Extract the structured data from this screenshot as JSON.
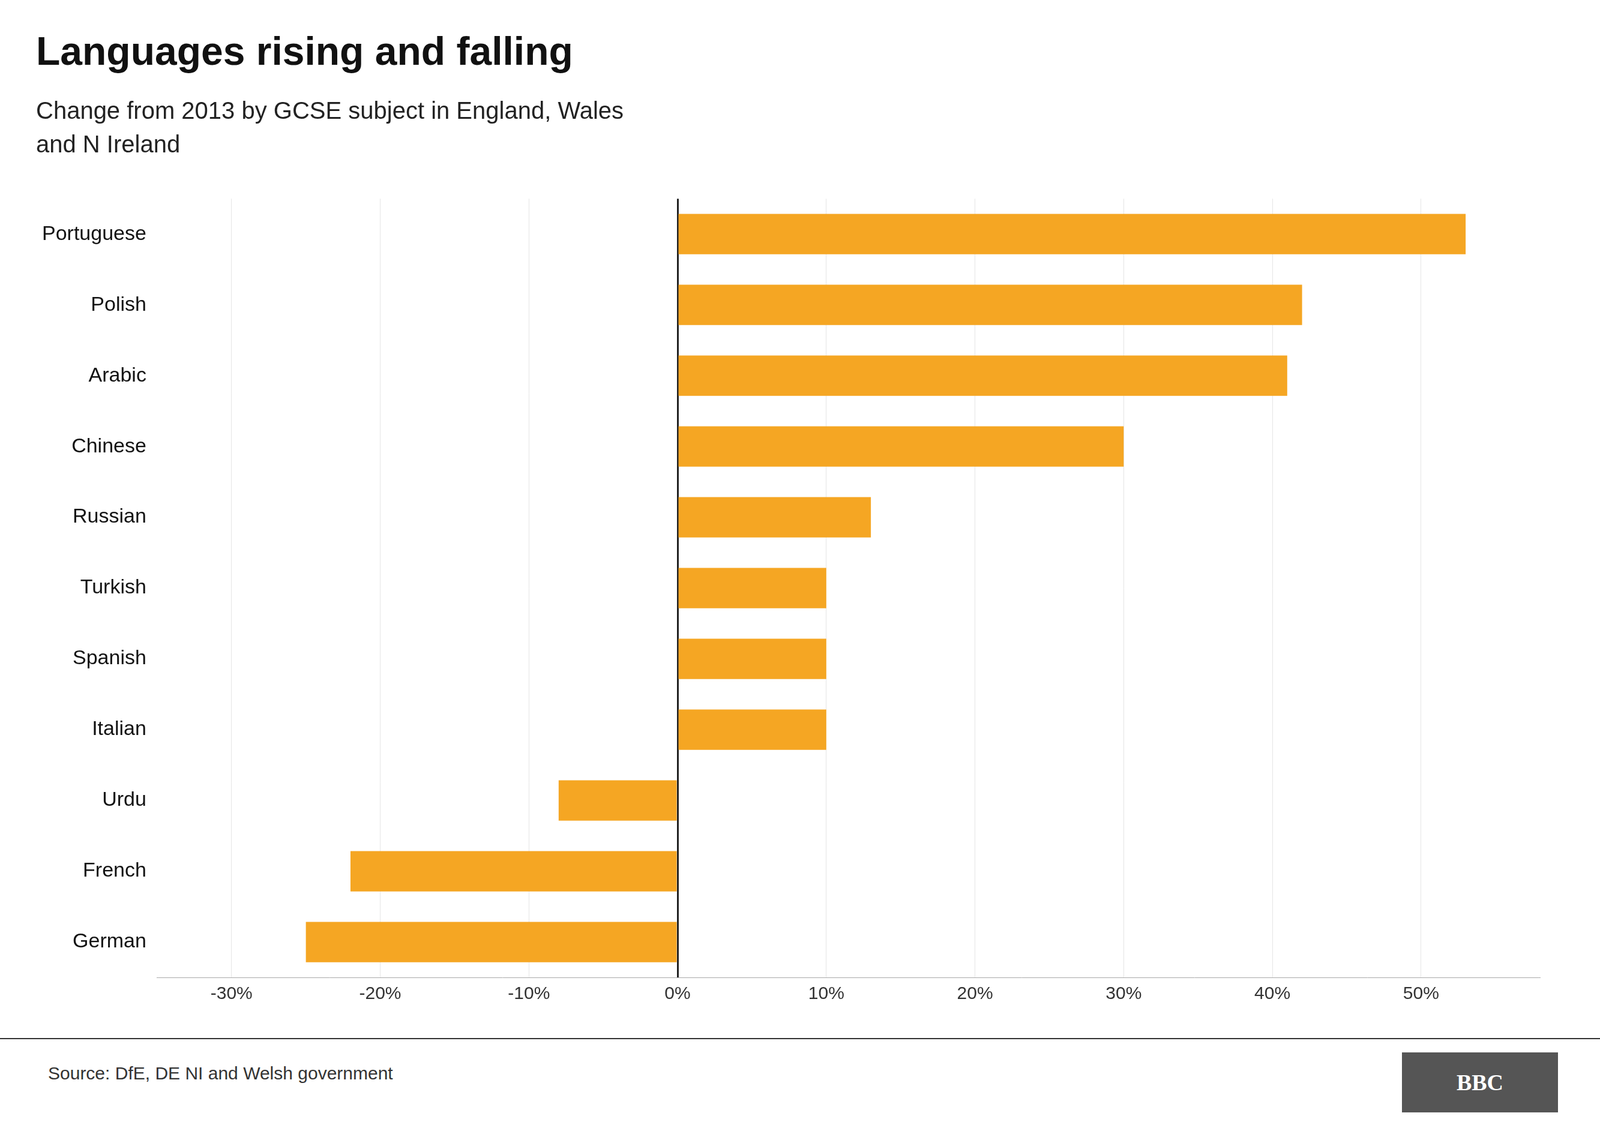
{
  "chart_data": {
    "type": "bar",
    "orientation": "horizontal",
    "title": "Languages rising and falling",
    "subtitle": "Change from 2013 by GCSE subject in England, Wales\nand N Ireland",
    "source": "Source: DfE, DE NI and Welsh government",
    "annotations": [
      "BBC"
    ],
    "categories": [
      "Portuguese",
      "Polish",
      "Arabic",
      "Chinese",
      "Russian",
      "Turkish",
      "Spanish",
      "Italian",
      "Urdu",
      "French",
      "German"
    ],
    "values": [
      53,
      42,
      41,
      30,
      13,
      10,
      10,
      10,
      -8,
      -22,
      -25
    ],
    "color": "#F5A623",
    "xlim": [
      -35,
      58
    ],
    "xticks": [
      {
        "value": -30,
        "label": "-30%"
      },
      {
        "value": -20,
        "label": "-20%"
      },
      {
        "value": -10,
        "label": "-10%"
      },
      {
        "value": 0,
        "label": "0%"
      },
      {
        "value": 10,
        "label": "10%"
      },
      {
        "value": 20,
        "label": "20%"
      },
      {
        "value": 30,
        "label": "30%"
      },
      {
        "value": 40,
        "label": "40%"
      },
      {
        "value": 50,
        "label": "50%"
      }
    ],
    "grid": true
  }
}
